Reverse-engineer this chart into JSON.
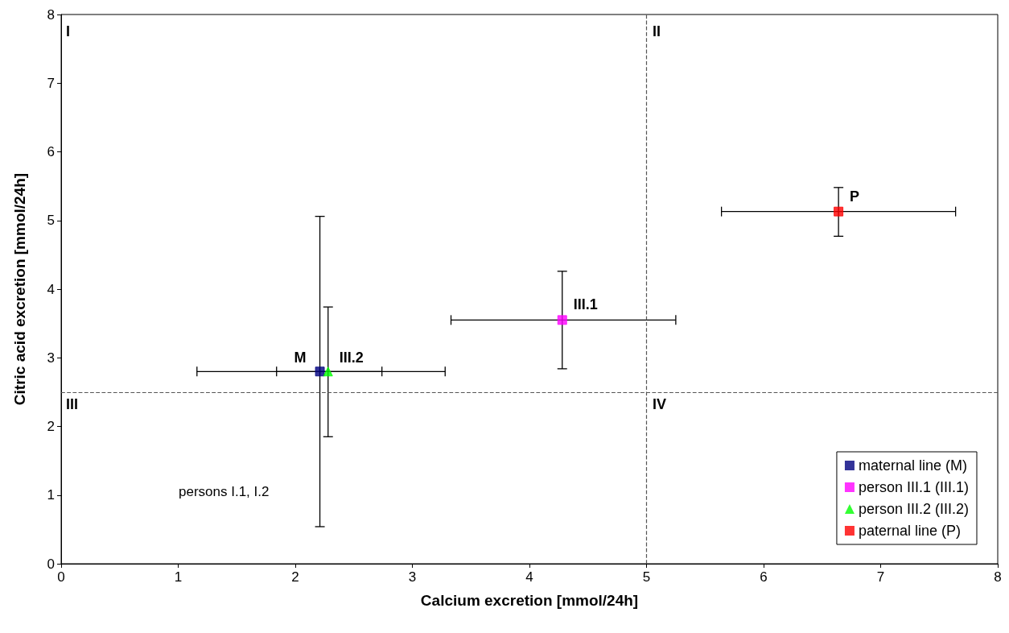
{
  "chart_data": {
    "type": "scatter",
    "xlabel": "Calcium excretion [mmol/24h]",
    "ylabel": "Citric acid excretion [mmol/24h]",
    "xlim": [
      0,
      8
    ],
    "xticks": [
      0,
      1,
      2,
      3,
      4,
      5,
      6,
      7,
      8
    ],
    "ylim": [
      0,
      8
    ],
    "yticks": [
      0,
      1,
      2,
      3,
      4,
      5,
      6,
      7,
      8
    ],
    "grid": false,
    "legend": "bottom right",
    "series": [
      {
        "name": "maternal line (M)",
        "color": "#000080",
        "marker": "square",
        "x": [
          2.21
        ],
        "values": [
          2.8
        ],
        "errors": [
          [
            0.54,
            5.06
          ]
        ],
        "xerrors": [
          [
            1.16,
            3.28
          ]
        ]
      },
      {
        "name": "person III.1 (III.1)",
        "color": "#ff00ff",
        "marker": "square",
        "x": [
          4.28
        ],
        "values": [
          3.55
        ],
        "errors": [
          [
            2.84,
            4.26
          ]
        ],
        "xerrors": [
          [
            3.33,
            5.25
          ]
        ]
      },
      {
        "name": "person III.2 (III.2)",
        "color": "#00ff00",
        "marker": "triangle",
        "x": [
          2.28
        ],
        "values": [
          2.8
        ],
        "errors": [
          [
            1.85,
            3.74
          ]
        ],
        "xerrors": [
          [
            1.84,
            2.74
          ]
        ]
      },
      {
        "name": "paternal line (P)",
        "color": "#ff0000",
        "marker": "square",
        "x": [
          6.64
        ],
        "values": [
          5.13
        ],
        "errors": [
          [
            4.77,
            5.48
          ]
        ],
        "xerrors": [
          [
            5.64,
            7.64
          ]
        ]
      }
    ],
    "ref_lines": [
      {
        "axis": "x",
        "value": 5,
        "line_style": "dashed",
        "color": "#555555"
      },
      {
        "axis": "y",
        "value": 2.5,
        "line_style": "dashed",
        "color": "#555555"
      }
    ],
    "annotations": [
      "I",
      "II",
      "III",
      "IV",
      {
        "text": "M",
        "x": 2.21,
        "y": 2.8
      },
      {
        "text": "III.2",
        "x": 2.28,
        "y": 2.8
      },
      {
        "text": "III.1",
        "x": 4.28,
        "y": 3.55
      },
      {
        "text": "P",
        "x": 6.64,
        "y": 5.13
      },
      "persons I.1, I.2"
    ]
  }
}
